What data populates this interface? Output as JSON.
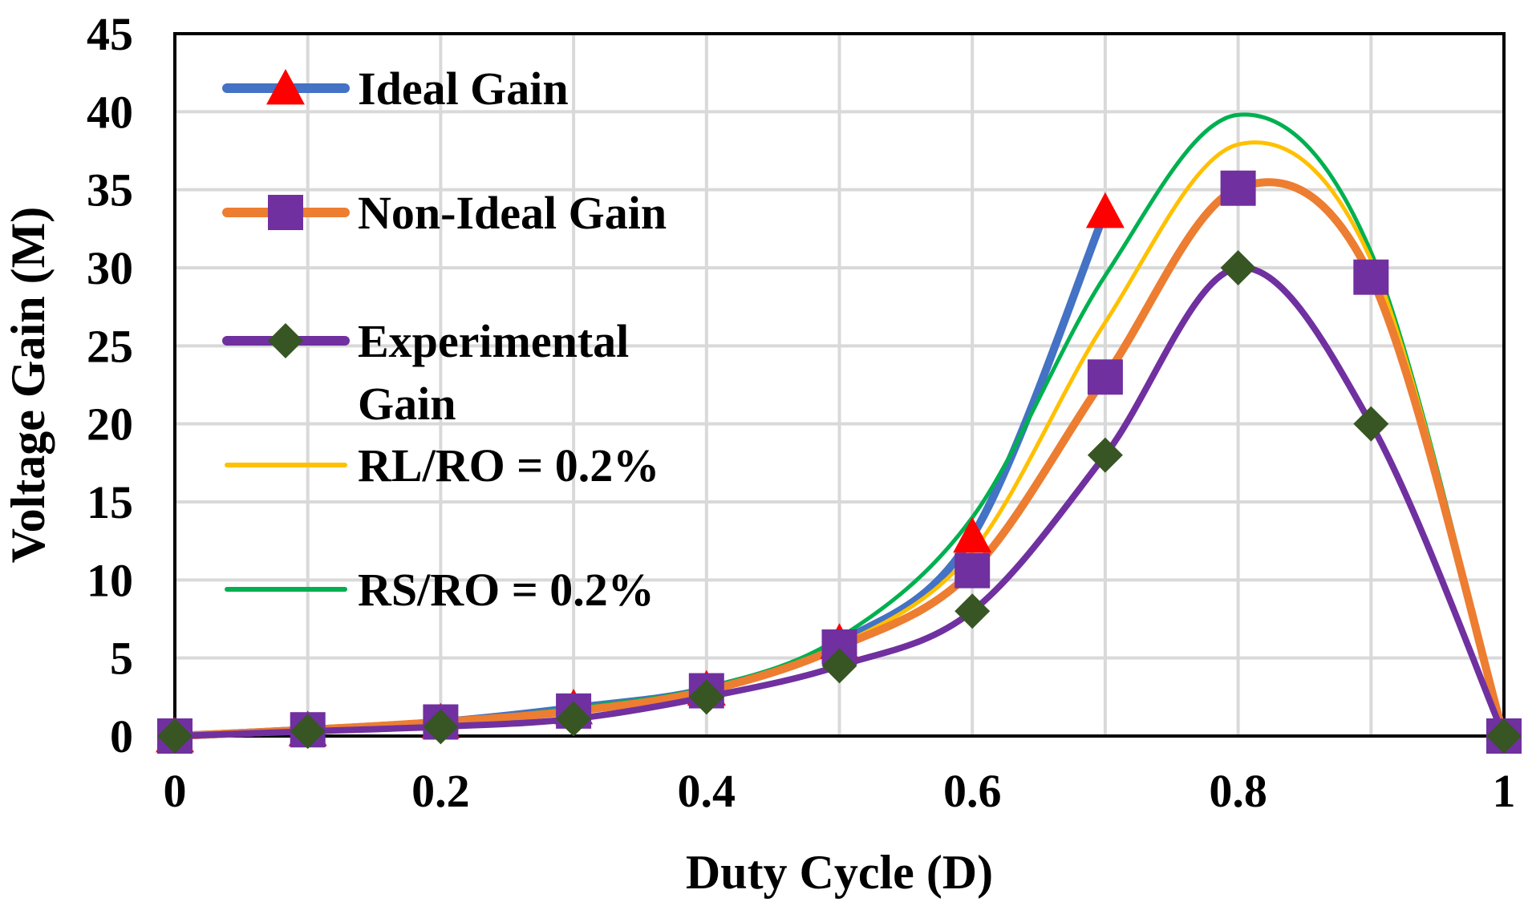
{
  "chart_data": {
    "type": "line",
    "title": "",
    "xlabel": "Duty Cycle (D)",
    "ylabel": "Voltage Gain (M)",
    "xlim": [
      0,
      1
    ],
    "ylim": [
      0,
      45
    ],
    "x_ticks": [
      "0",
      "0.2",
      "0.4",
      "0.6",
      "0.8",
      "1"
    ],
    "y_ticks": [
      "0",
      "5",
      "10",
      "15",
      "20",
      "25",
      "30",
      "35",
      "40",
      "45"
    ],
    "grid": true,
    "legend_position": "top-left inside plot",
    "series": [
      {
        "name": "Ideal Gain",
        "line_color": "#4472c4",
        "marker": "triangle",
        "marker_color": "#ff0000",
        "x": [
          0,
          0.1,
          0.2,
          0.3,
          0.4,
          0.5,
          0.6,
          0.7
        ],
        "y": [
          0,
          0.4,
          0.9,
          1.8,
          3.0,
          6.0,
          12.8,
          33.6
        ]
      },
      {
        "name": "Non-Ideal Gain",
        "line_color": "#ed7d31",
        "marker": "square",
        "marker_color": "#7030a0",
        "x": [
          0,
          0.1,
          0.2,
          0.3,
          0.4,
          0.5,
          0.6,
          0.7,
          0.8,
          0.9,
          1.0
        ],
        "y": [
          0,
          0.4,
          0.9,
          1.6,
          2.9,
          5.7,
          10.6,
          23.0,
          35.1,
          29.4,
          0
        ]
      },
      {
        "name": "Experimental Gain",
        "line_color": "#7030a0",
        "marker": "diamond",
        "marker_color": "#375623",
        "x": [
          0,
          0.1,
          0.2,
          0.3,
          0.4,
          0.5,
          0.6,
          0.7,
          0.8,
          0.9,
          1.0
        ],
        "y": [
          0,
          0.3,
          0.6,
          1.1,
          2.5,
          4.5,
          8.0,
          18.0,
          30.0,
          20.0,
          0
        ]
      },
      {
        "name": "RL/RO = 0.2%",
        "line_color": "#ffc000",
        "marker": "none",
        "x": [
          0,
          0.1,
          0.2,
          0.3,
          0.4,
          0.5,
          0.6,
          0.7,
          0.8,
          0.9,
          1.0
        ],
        "y": [
          0,
          0.4,
          0.9,
          1.7,
          3.0,
          5.8,
          11.8,
          26.5,
          37.9,
          30.5,
          0
        ]
      },
      {
        "name": "RS/RO = 0.2%",
        "line_color": "#00b050",
        "marker": "none",
        "x": [
          0,
          0.1,
          0.2,
          0.3,
          0.4,
          0.5,
          0.6,
          0.7,
          0.8,
          0.9,
          1.0
        ],
        "y": [
          0,
          0.4,
          0.9,
          1.8,
          3.1,
          6.3,
          14.0,
          29.5,
          39.8,
          31.0,
          0
        ]
      }
    ],
    "legend_order": [
      0,
      1,
      2,
      3,
      4
    ],
    "legend_label_lines": {
      "Experimental Gain": [
        "Experimental",
        "Gain"
      ]
    }
  }
}
